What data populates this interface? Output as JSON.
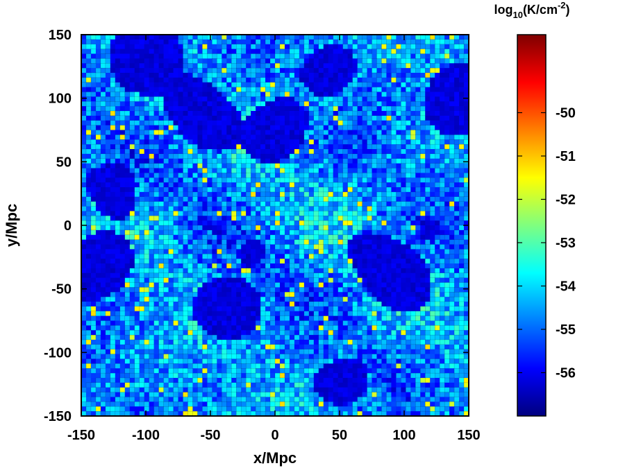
{
  "chart_data": {
    "type": "heatmap",
    "xlabel": "x/Mpc",
    "ylabel": "y/Mpc",
    "xlim": [
      -150,
      150
    ],
    "ylim": [
      -150,
      150
    ],
    "x_ticks": [
      "-150",
      "-100",
      "-50",
      "0",
      "50",
      "100",
      "150"
    ],
    "y_ticks": [
      "-150",
      "-100",
      "-50",
      "0",
      "50",
      "100",
      "150"
    ],
    "colorbar": {
      "title_base": "log",
      "title_sub": "10",
      "title_unit": "(K/cm",
      "title_sup": "-2",
      "title_close": ")",
      "range": [
        -57,
        -48.2
      ],
      "ticks": [
        "-50",
        "-51",
        "-52",
        "-53",
        "-54",
        "-55",
        "-56"
      ],
      "tick_values": [
        -50,
        -51,
        -52,
        -53,
        -54,
        -55,
        -56
      ],
      "colormap": [
        "#00007f",
        "#0000ff",
        "#007fff",
        "#00ffff",
        "#7fff7f",
        "#ffff00",
        "#ff7f00",
        "#ff0000",
        "#7f0000"
      ]
    },
    "field_description_values": {
      "void_level": -56.5,
      "filament_level": -54.5,
      "peak_level": -52
    },
    "contours": true,
    "grid": false
  }
}
